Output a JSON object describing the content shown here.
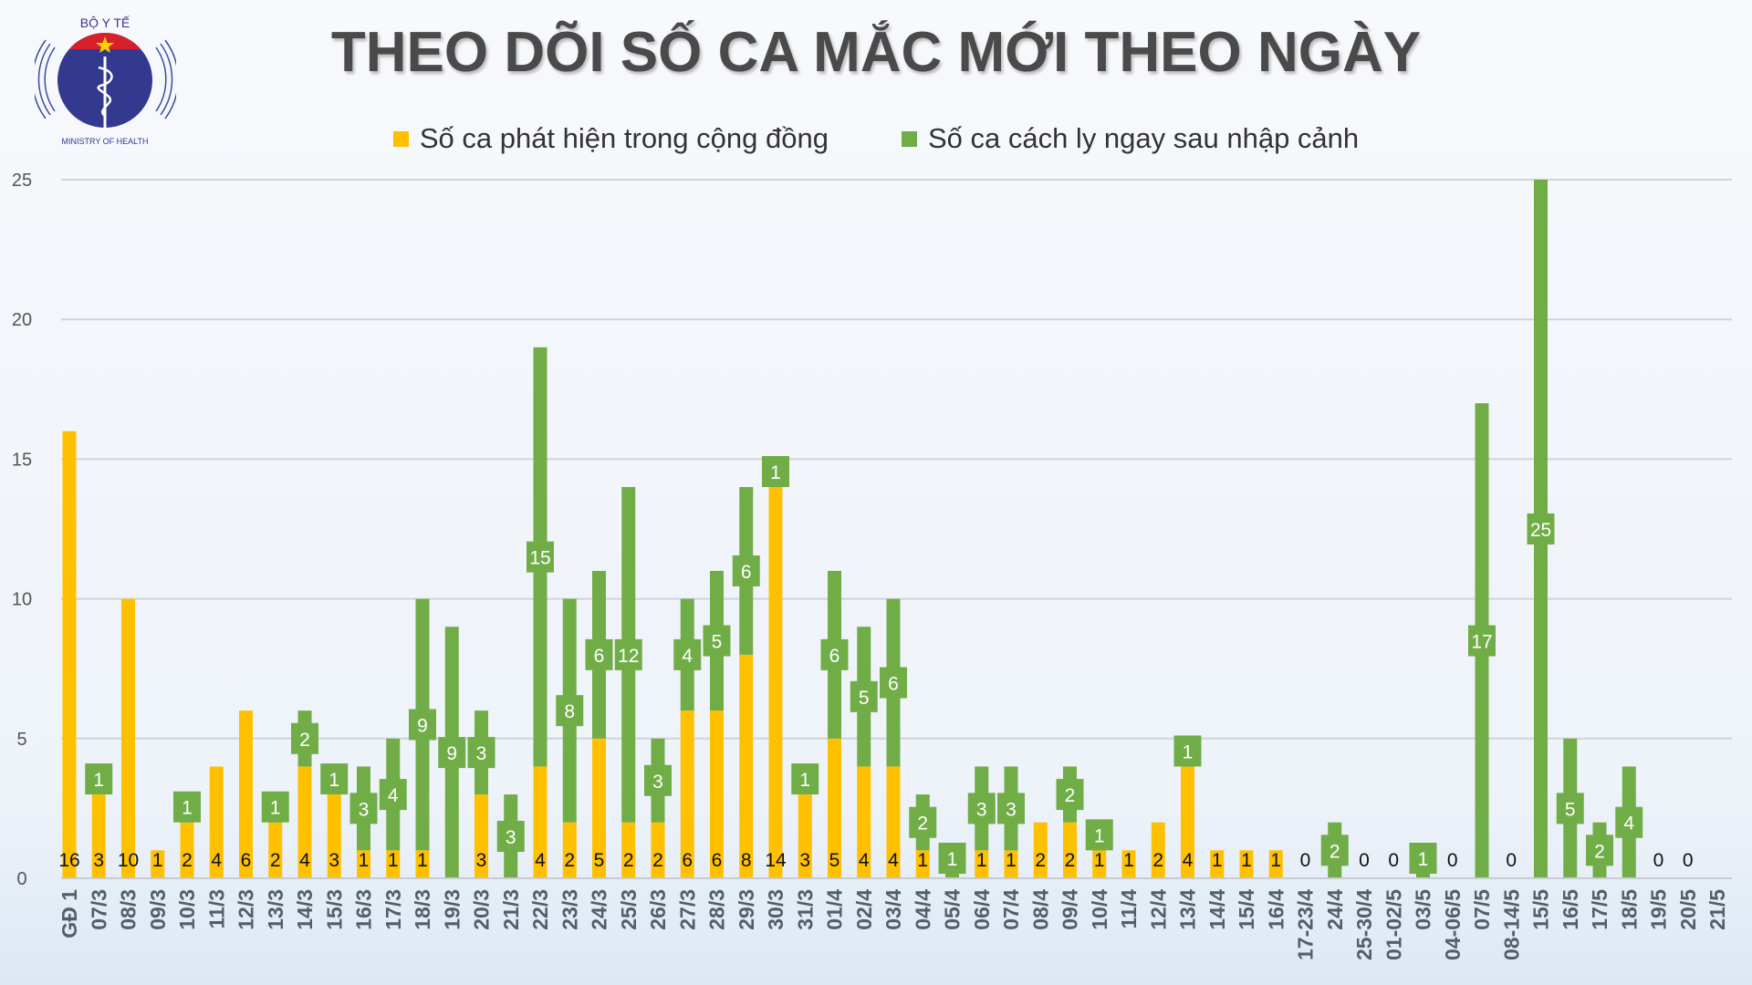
{
  "logo": {
    "top_text": "BỘ Y TẾ",
    "bottom_text": "MINISTRY OF HEALTH"
  },
  "chart_data": {
    "type": "bar",
    "stacked": true,
    "title": "THEO DÕI SỐ CA MẮC MỚI THEO NGÀY",
    "legend_position": "top",
    "grid": true,
    "ylim": [
      0,
      25
    ],
    "yticks": [
      0,
      5,
      10,
      15,
      20,
      25
    ],
    "categories": [
      "GĐ 1",
      "07/3",
      "08/3",
      "09/3",
      "10/3",
      "11/3",
      "12/3",
      "13/3",
      "14/3",
      "15/3",
      "16/3",
      "17/3",
      "18/3",
      "19/3",
      "20/3",
      "21/3",
      "22/3",
      "23/3",
      "24/3",
      "25/3",
      "26/3",
      "27/3",
      "28/3",
      "29/3",
      "30/3",
      "31/3",
      "01/4",
      "02/4",
      "03/4",
      "04/4",
      "05/4",
      "06/4",
      "07/4",
      "08/4",
      "09/4",
      "10/4",
      "11/4",
      "12/4",
      "13/4",
      "14/4",
      "15/4",
      "16/4",
      "17-23/4",
      "24/4",
      "25-30/4",
      "01-02/5",
      "03/5",
      "04-06/5",
      "07/5",
      "08-14/5",
      "15/5",
      "16/5",
      "17/5",
      "18/5",
      "19/5",
      "20/5",
      "21/5"
    ],
    "series": [
      {
        "name": "Số ca phát hiện trong cộng đồng",
        "color": "#ffc000",
        "values": [
          16,
          3,
          10,
          1,
          2,
          4,
          6,
          2,
          4,
          3,
          1,
          1,
          1,
          0,
          3,
          0,
          4,
          2,
          5,
          2,
          2,
          6,
          6,
          8,
          14,
          3,
          5,
          4,
          4,
          1,
          0,
          1,
          1,
          2,
          2,
          1,
          1,
          2,
          4,
          1,
          1,
          1,
          0,
          0,
          0,
          0,
          0,
          0,
          0,
          0,
          0,
          0,
          0,
          0,
          0,
          0,
          null
        ]
      },
      {
        "name": "Số ca cách ly ngay sau nhập cảnh",
        "color": "#70ad47",
        "values": [
          0,
          1,
          0,
          0,
          1,
          0,
          0,
          1,
          2,
          1,
          3,
          4,
          9,
          9,
          3,
          3,
          15,
          8,
          6,
          12,
          3,
          4,
          5,
          6,
          1,
          1,
          6,
          5,
          6,
          2,
          1,
          3,
          3,
          0,
          2,
          1,
          0,
          0,
          1,
          0,
          0,
          0,
          0,
          2,
          0,
          0,
          1,
          0,
          17,
          0,
          25,
          5,
          2,
          4,
          0,
          0,
          null
        ]
      }
    ]
  }
}
